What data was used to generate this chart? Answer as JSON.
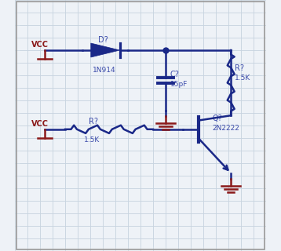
{
  "bg_color": "#eef2f7",
  "grid_color": "#c8d4e0",
  "wire_color": "#1a2888",
  "label_color": "#3a4aaa",
  "power_color": "#8b1a1a",
  "gnd_color": "#8b1a1a",
  "dot_color": "#1a2888",
  "border_color": "#999999",
  "vcc1_label": "VCC",
  "vcc2_label": "VCC",
  "diode_label": "D?",
  "diode_value": "1N914",
  "cap_label": "C?",
  "cap_value": "15pF",
  "res1_label": "R?",
  "res1_value": "1.5K",
  "res2_label": "R?",
  "res2_value": "1.5K",
  "trans_label": "Q?",
  "trans_value": "2N2222",
  "lw": 1.8
}
